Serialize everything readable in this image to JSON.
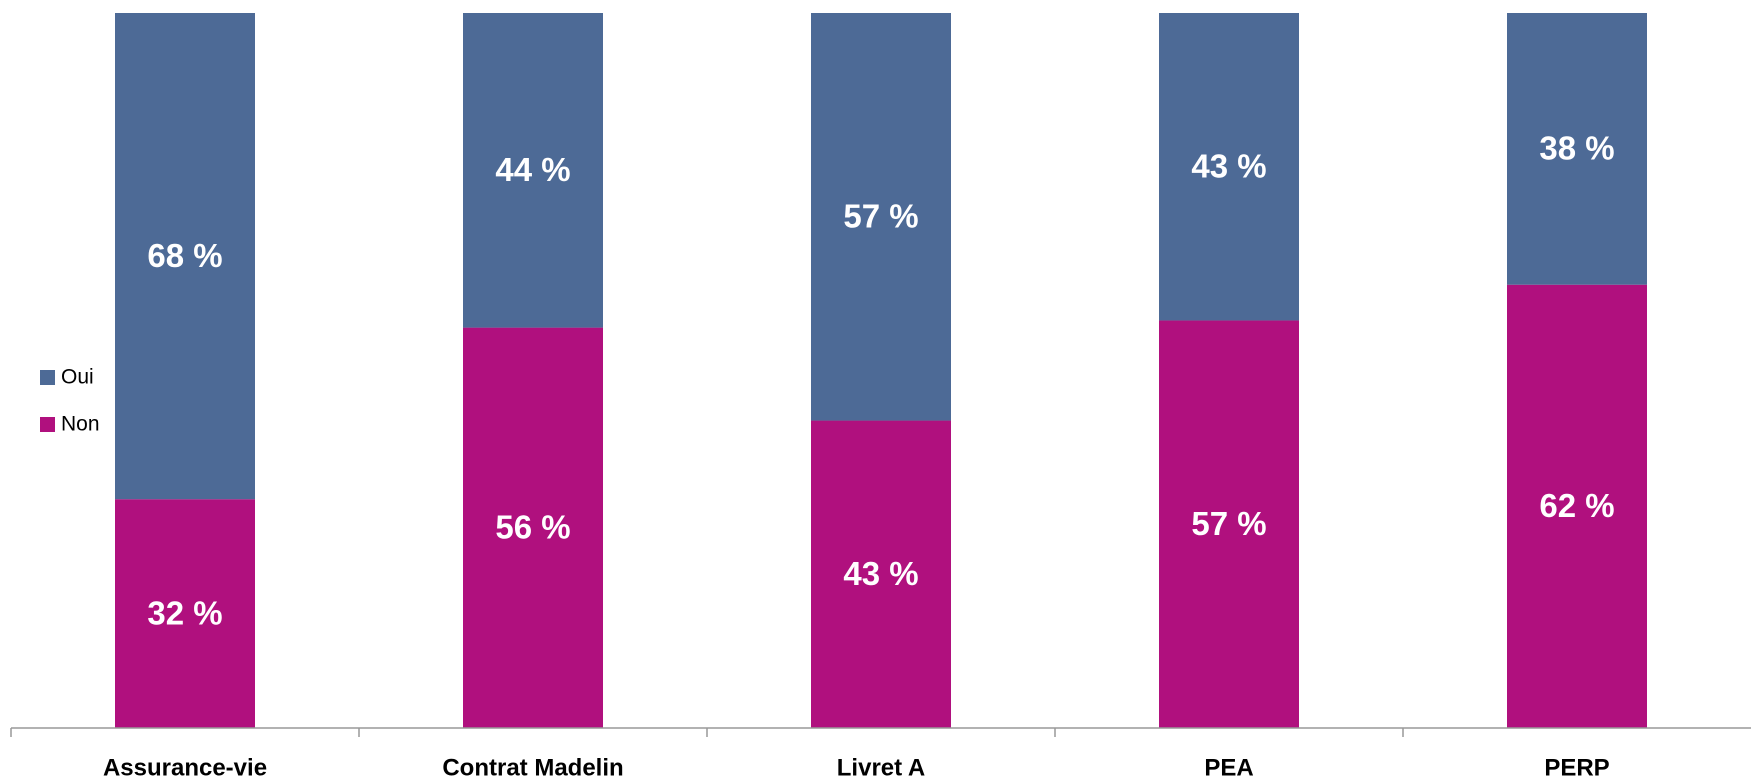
{
  "chart_data": {
    "type": "stacked_bar",
    "categories": [
      "Assurance-vie",
      "Contrat Madelin",
      "Livret A",
      "PEA",
      "PERP"
    ],
    "series": [
      {
        "name": "Oui",
        "color": "#4d6a96",
        "values": [
          68,
          44,
          57,
          43,
          38
        ],
        "value_labels": [
          "68 %",
          "44 %",
          "57 %",
          "43 %",
          "38 %"
        ]
      },
      {
        "name": "Non",
        "color": "#b0107e",
        "values": [
          32,
          56,
          43,
          57,
          62
        ],
        "value_labels": [
          "32 %",
          "56 %",
          "43 %",
          "57 %",
          "62 %"
        ]
      }
    ],
    "ylim": [
      0,
      100
    ],
    "legend": "left"
  }
}
